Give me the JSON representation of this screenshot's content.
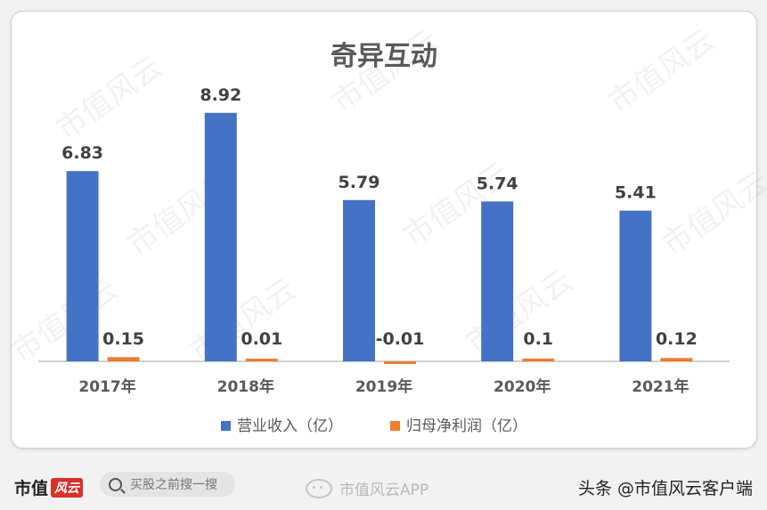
{
  "chart_data": {
    "type": "bar",
    "title": "奇异互动",
    "categories": [
      "2017年",
      "2018年",
      "2019年",
      "2020年",
      "2021年"
    ],
    "series": [
      {
        "name": "营业收入（亿）",
        "values": [
          6.83,
          8.92,
          5.79,
          5.74,
          5.41
        ],
        "labels": [
          "6.83",
          "8.92",
          "5.79",
          "5.74",
          "5.41"
        ],
        "color": "#4472c4"
      },
      {
        "name": "归母净利润（亿）",
        "values": [
          0.15,
          0.01,
          -0.01,
          0.1,
          0.12
        ],
        "labels": [
          "0.15",
          "0.01",
          "-0.01",
          "0.1",
          "0.12"
        ],
        "color": "#ed7d31"
      }
    ],
    "ylim": [
      0,
      10
    ],
    "grid": false,
    "legend_position": "bottom"
  },
  "watermark": "市值风云",
  "footer": {
    "brand": "市值",
    "brand_mark": "风云",
    "search_placeholder": "买股之前搜一搜",
    "wechat_label": "市值风云APP",
    "account": "头条 @市值风云客户端"
  }
}
